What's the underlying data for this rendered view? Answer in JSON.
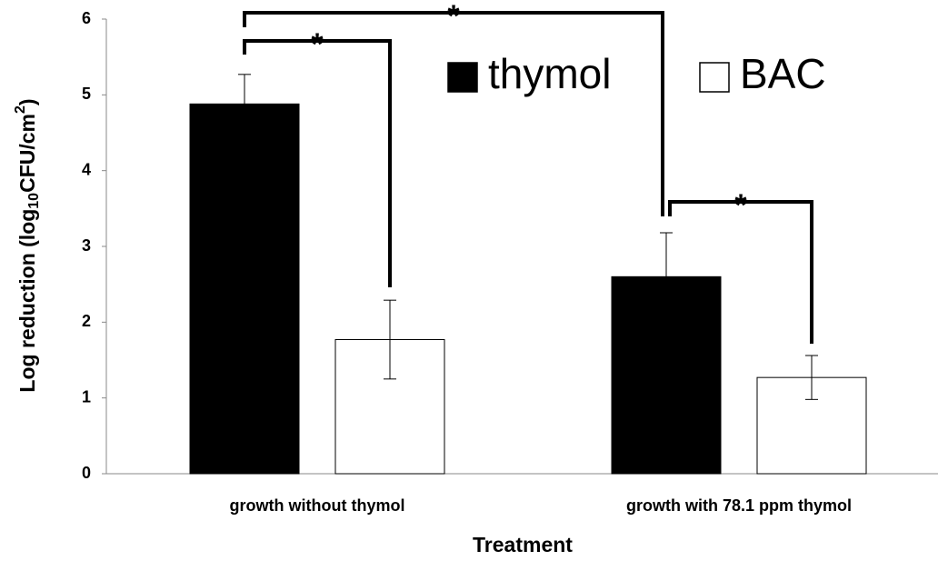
{
  "chart_data": {
    "type": "bar",
    "y_label_parts": [
      "Log reduction (log",
      "10",
      "CFU/cm",
      "2",
      ")"
    ],
    "x_label": "Treatment",
    "categories": [
      "growth without thymol",
      "growth with 78.1 ppm thymol"
    ],
    "series": [
      {
        "name": "thymol",
        "color": "#000000",
        "values": [
          4.88,
          2.6
        ],
        "errors": [
          0.39,
          0.58
        ]
      },
      {
        "name": "BAC",
        "color": "#ffffff",
        "values": [
          1.77,
          1.27
        ],
        "errors": [
          0.52,
          0.29
        ]
      }
    ],
    "ylim": [
      0,
      6
    ],
    "yticks": [
      0,
      1,
      2,
      3,
      4,
      5,
      6
    ],
    "grid": false,
    "annotations": [
      "*",
      "*",
      "*"
    ]
  }
}
